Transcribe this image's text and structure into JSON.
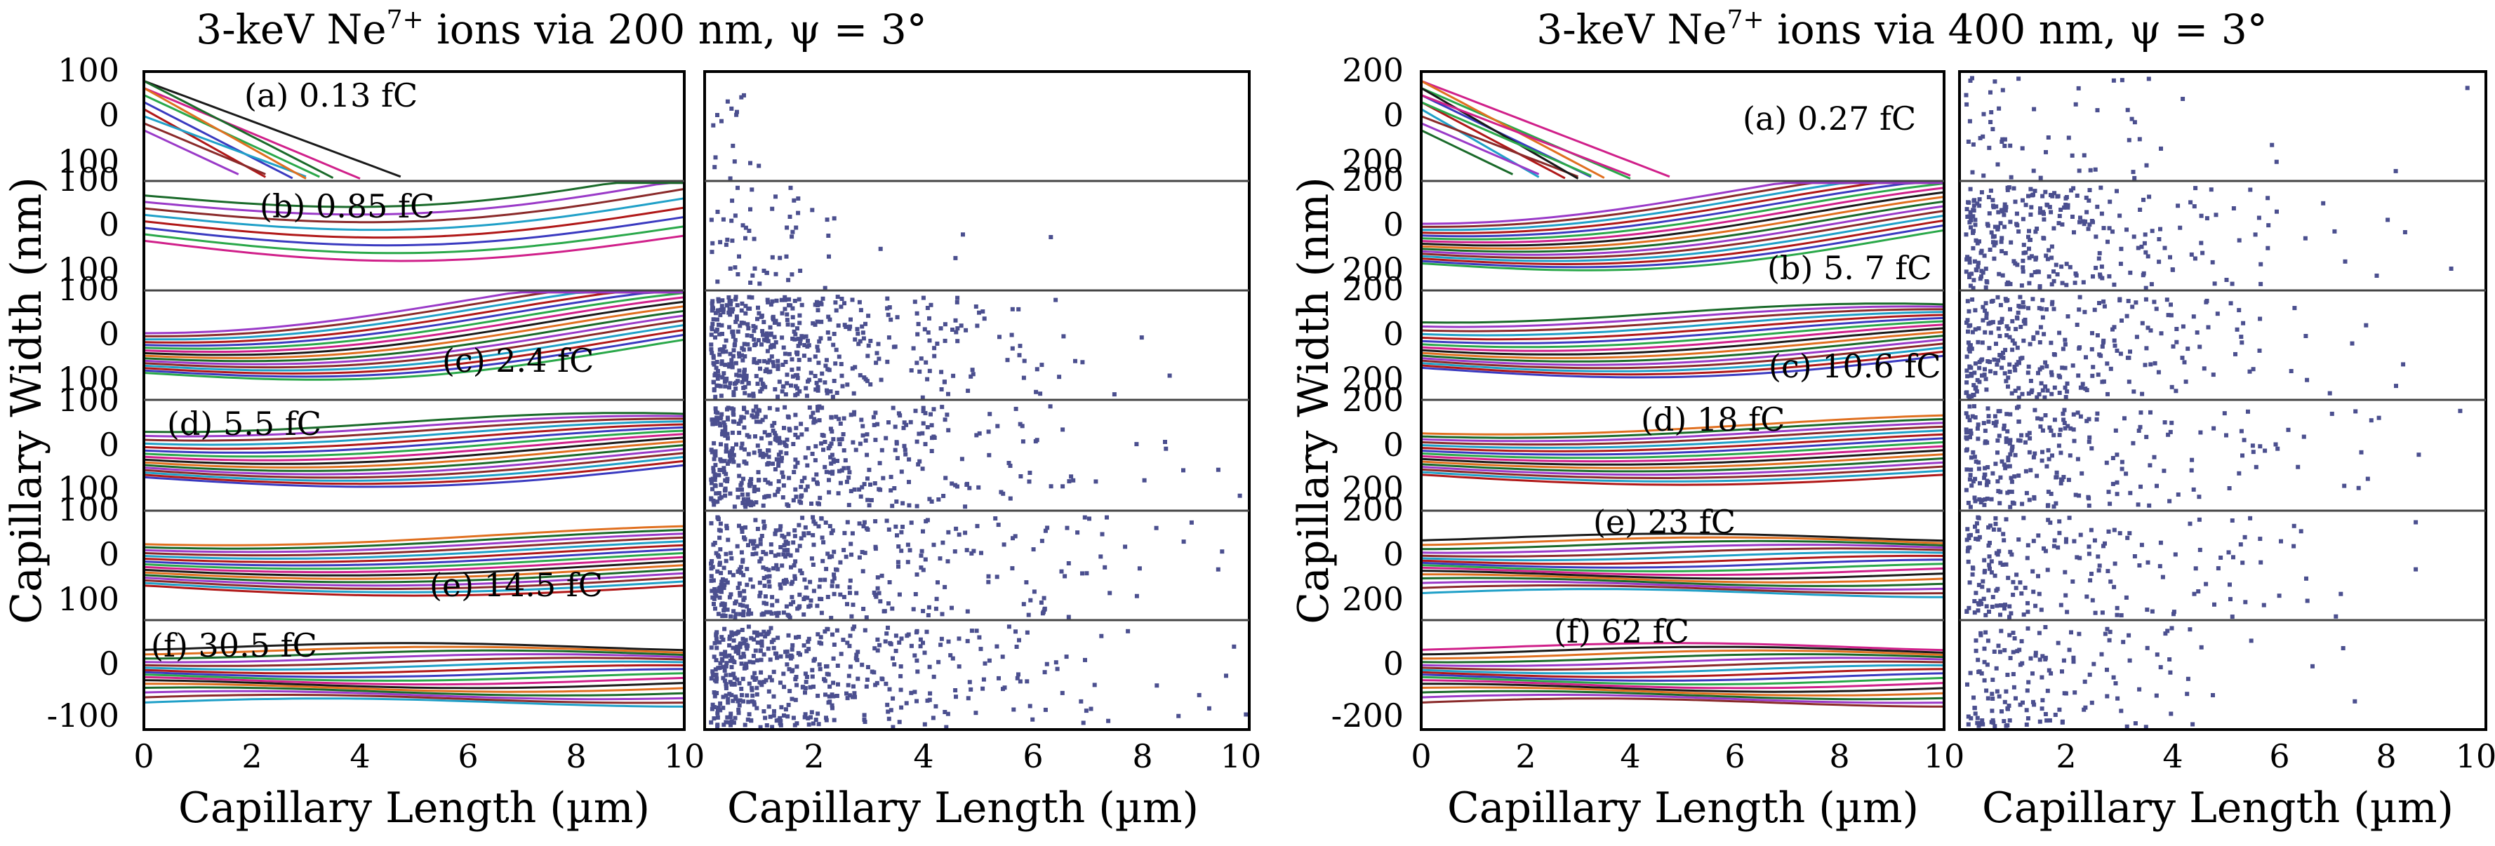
{
  "chart_data": [
    {
      "type": "line",
      "title_prefix": "3-keV Ne",
      "title_sup": "7+",
      "title_suffix": " ions via 200 nm, ψ = 3°",
      "ylabel": "Capillary Width (nm)",
      "xlabel": "Capillary Length (µm)",
      "xlim": [
        0,
        10
      ],
      "x_ticks": [
        "0",
        "2",
        "4",
        "6",
        "8",
        "10"
      ],
      "panel_ylim": [
        -100,
        100
      ],
      "y_tick_labels": [
        "100",
        "0",
        "100"
      ],
      "bottom_y_tick_labels": [
        "0",
        "-100"
      ],
      "panels": [
        {
          "label": "(a) 0.13 fC",
          "n_traj": 10,
          "kind": "straight",
          "pos": "top"
        },
        {
          "label": "(b) 0.85 fC",
          "n_traj": 8,
          "kind": "weak",
          "pos": "top"
        },
        {
          "label": "(c) 2.4 fC",
          "n_traj": 16,
          "kind": "wave",
          "pos": "bottom"
        },
        {
          "label": "(d) 5.5 fC",
          "n_traj": 16,
          "kind": "wave2",
          "pos": "top"
        },
        {
          "label": "(e) 14.5 fC",
          "n_traj": 16,
          "kind": "guided",
          "pos": "bottom"
        },
        {
          "label": "(f) 30.5 fC",
          "n_traj": 16,
          "kind": "flat",
          "pos": "top"
        }
      ],
      "scatter": {
        "xlabel": "Capillary Length (µm)",
        "x_ticks": [
          "2",
          "4",
          "6",
          "8",
          "10"
        ],
        "marker_color": "#4b4f8f",
        "points_per_panel": [
          16,
          60,
          480,
          480,
          420,
          480
        ],
        "spread_um": [
          0.8,
          3.0,
          4.0,
          4.5,
          4.5,
          4.5
        ]
      }
    },
    {
      "type": "line",
      "title_prefix": "3-keV Ne",
      "title_sup": "7+",
      "title_suffix": " ions via 400 nm, ψ = 3°",
      "ylabel": "Capillary Width (nm)",
      "xlabel": "Capillary Length (µm)",
      "xlim": [
        0,
        10
      ],
      "x_ticks": [
        "0",
        "2",
        "4",
        "6",
        "8",
        "10"
      ],
      "panel_ylim": [
        -200,
        200
      ],
      "y_tick_labels": [
        "200",
        "0",
        "200"
      ],
      "bottom_y_tick_labels": [
        "0",
        "-200"
      ],
      "panels": [
        {
          "label": "(a) 0.27 fC",
          "n_traj": 12,
          "kind": "straight",
          "pos": "top"
        },
        {
          "label": "(b) 5. 7 fC",
          "n_traj": 16,
          "kind": "wave",
          "pos": "bottom"
        },
        {
          "label": "(c) 10.6 fC",
          "n_traj": 16,
          "kind": "wave2",
          "pos": "bottom"
        },
        {
          "label": "(d) 18 fC",
          "n_traj": 16,
          "kind": "guided",
          "pos": "top"
        },
        {
          "label": "(e) 23 fC",
          "n_traj": 16,
          "kind": "flat",
          "pos": "top"
        },
        {
          "label": "(f) 62 fC",
          "n_traj": 16,
          "kind": "flat",
          "pos": "top"
        }
      ],
      "scatter": {
        "xlabel": "Capillary Length (µm)",
        "x_ticks": [
          "2",
          "4",
          "6",
          "8",
          "10"
        ],
        "marker_color": "#4b4f8f",
        "points_per_panel": [
          60,
          300,
          300,
          260,
          200,
          160
        ],
        "spread_um": [
          4.5,
          4.5,
          4.5,
          4.5,
          4.5,
          4.0
        ]
      }
    }
  ],
  "trajectory_colors": [
    "#1a1a1a",
    "#d0208a",
    "#2aa84a",
    "#3a3ac0",
    "#b01818",
    "#20a0c8",
    "#8a2a2a",
    "#9a3ac8",
    "#1a6a2a",
    "#e07020"
  ]
}
